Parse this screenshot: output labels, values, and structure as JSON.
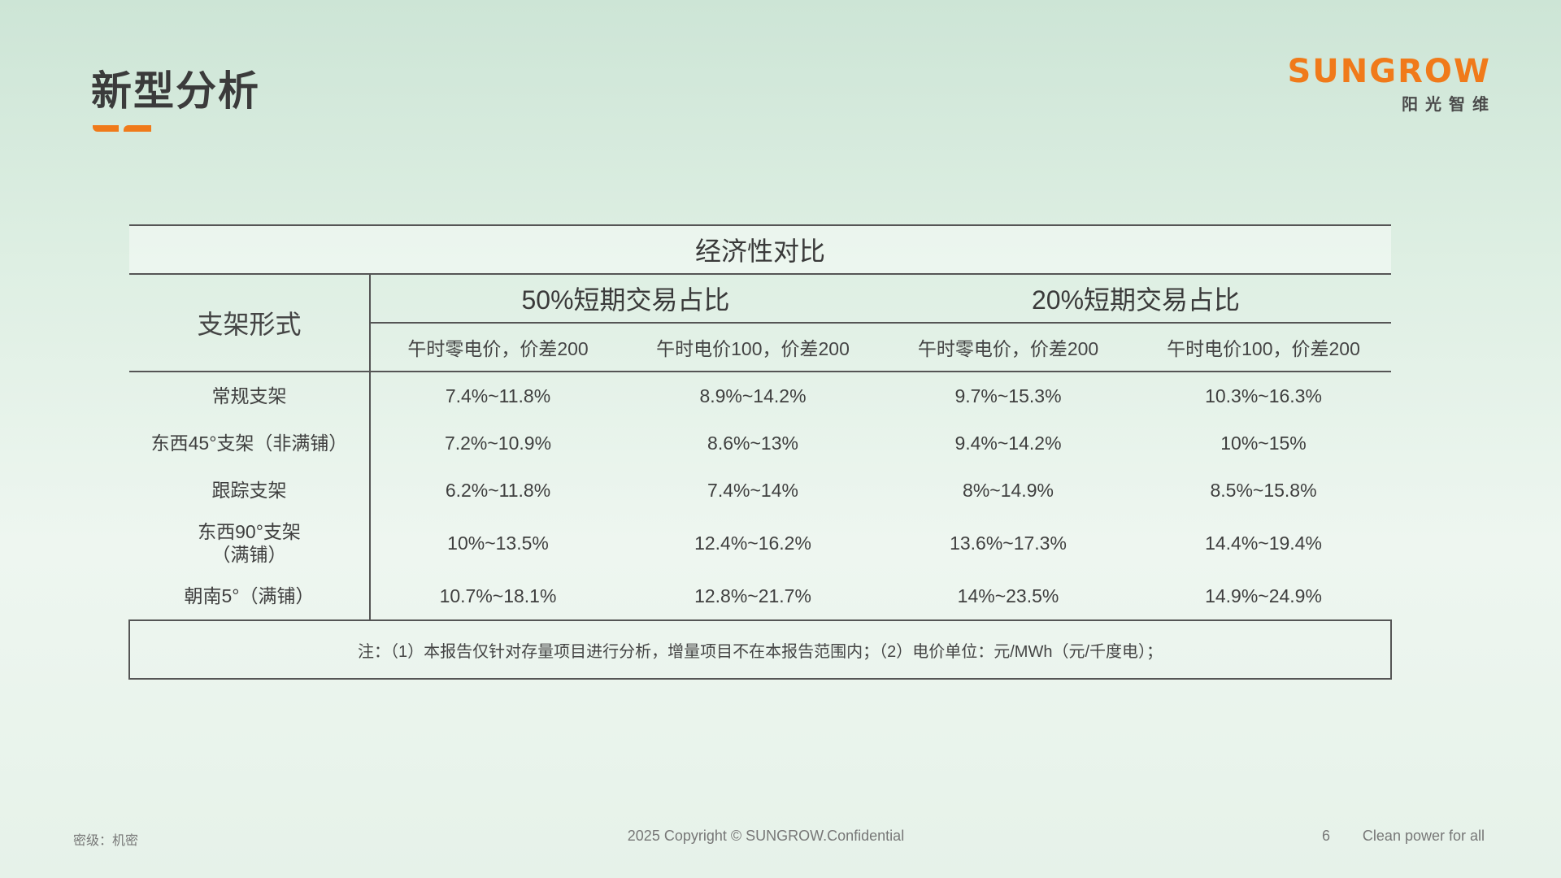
{
  "page": {
    "title": "新型分析"
  },
  "logo": {
    "brand": "SUNGROW",
    "sub": "阳光智维",
    "accent_color": "#f07a1a"
  },
  "table": {
    "title": "经济性对比",
    "row_header": "支架形式",
    "groups": [
      {
        "label": "50%短期交易占比",
        "columns": [
          "午时零电价，价差200",
          "午时电价100，价差200"
        ]
      },
      {
        "label": "20%短期交易占比",
        "columns": [
          "午时零电价，价差200",
          "午时电价100，价差200"
        ]
      }
    ],
    "rows": [
      {
        "mount_line1": "常规支架",
        "mount_line2": "",
        "values": [
          "7.4%~11.8%",
          "8.9%~14.2%",
          "9.7%~15.3%",
          "10.3%~16.3%"
        ]
      },
      {
        "mount_line1": "东西45°支架（非满铺）",
        "mount_line2": "",
        "values": [
          "7.2%~10.9%",
          "8.6%~13%",
          "9.4%~14.2%",
          "10%~15%"
        ]
      },
      {
        "mount_line1": "跟踪支架",
        "mount_line2": "",
        "values": [
          "6.2%~11.8%",
          "7.4%~14%",
          "8%~14.9%",
          "8.5%~15.8%"
        ]
      },
      {
        "mount_line1": "东西90°支架",
        "mount_line2": "（满铺）",
        "values": [
          "10%~13.5%",
          "12.4%~16.2%",
          "13.6%~17.3%",
          "14.4%~19.4%"
        ]
      },
      {
        "mount_line1": "朝南5°（满铺）",
        "mount_line2": "",
        "values": [
          "10.7%~18.1%",
          "12.8%~21.7%",
          "14%~23.5%",
          "14.9%~24.9%"
        ]
      }
    ],
    "note": "注：（1）本报告仅针对存量项目进行分析，增量项目不在本报告范围内；（2）电价单位：元/MWh（元/千度电）；"
  },
  "footer": {
    "classification": "密级：机密",
    "copyright": "2025 Copyright © SUNGROW.Confidential",
    "page_number": "6",
    "slogan": "Clean power for all"
  }
}
